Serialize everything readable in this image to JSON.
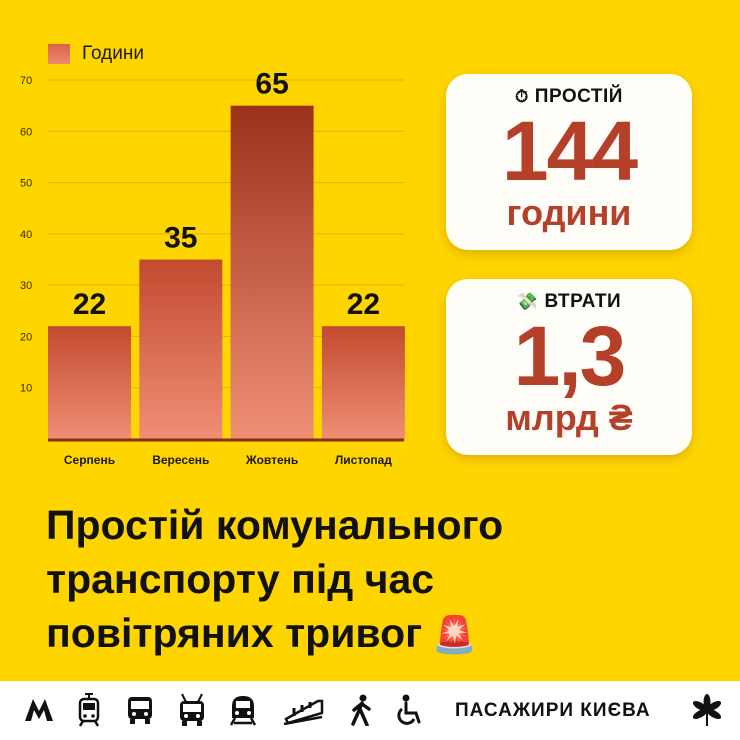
{
  "chart_data": {
    "type": "bar",
    "categories": [
      "Серпень",
      "Вересень",
      "Жовтень",
      "Листопад"
    ],
    "series": [
      {
        "name": "Години",
        "values": [
          22,
          35,
          65,
          22
        ]
      }
    ],
    "ylim": [
      0,
      70
    ],
    "yticks": [
      10,
      20,
      30,
      40,
      50,
      60,
      70
    ],
    "grid": true,
    "legend": "top-left",
    "data_labels": true
  },
  "legend": {
    "label": "Години"
  },
  "cards": [
    {
      "icon": "⏱",
      "title": "ПРОСТІЙ",
      "value": "144",
      "unit": "години"
    },
    {
      "icon": "💸",
      "title": "ВТРАТИ",
      "value": "1,3",
      "unit": "млрд ₴"
    }
  ],
  "headline": {
    "lines": [
      "Простій комунального",
      "транспорту під час",
      "повітряних тривог"
    ],
    "emoji": "🚨"
  },
  "footer": {
    "icons": [
      "metro-icon",
      "tram-icon",
      "bus-icon",
      "trolleybus-icon",
      "train-icon",
      "funicular-icon",
      "pedestrian-icon",
      "wheelchair-icon"
    ],
    "brand": "ПАСАЖИРИ КИЄВА",
    "logo": "chestnut-leaf-icon"
  },
  "colors": {
    "background": "#FFD500",
    "bar_top": "#A8371F",
    "bar_bottom": "#EF8F74",
    "accent": "#B5402A",
    "baseline": "#8A2E13"
  }
}
